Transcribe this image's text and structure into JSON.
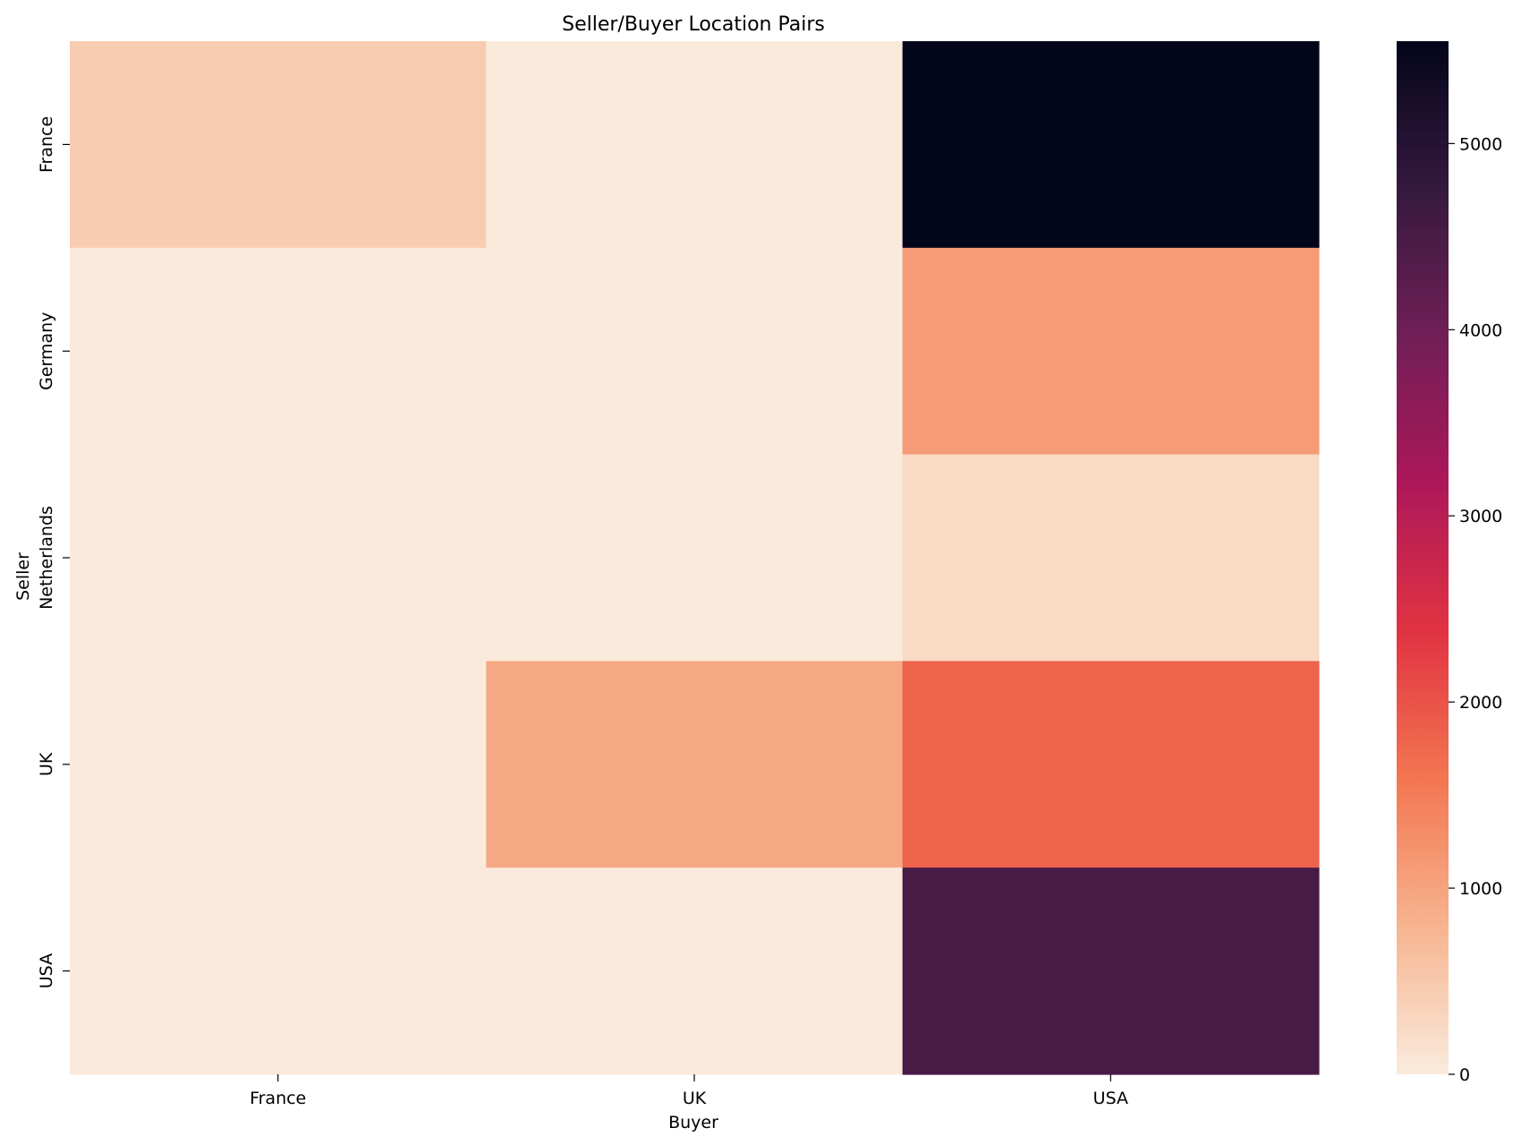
{
  "chart_data": {
    "type": "heatmap",
    "title": "Seller/Buyer Location Pairs",
    "xlabel": "Buyer",
    "ylabel": "Seller",
    "x_categories": [
      "France",
      "UK",
      "USA"
    ],
    "y_categories": [
      "France",
      "Germany",
      "Netherlands",
      "UK",
      "USA"
    ],
    "values": [
      [
        450,
        20,
        5600
      ],
      [
        20,
        20,
        1100
      ],
      [
        20,
        20,
        250
      ],
      [
        20,
        950,
        1800
      ],
      [
        20,
        20,
        4500
      ]
    ],
    "colorbar": {
      "range": [
        0,
        5550
      ],
      "ticks": [
        0,
        1000,
        2000,
        3000,
        4000,
        5000
      ],
      "tick_labels": [
        "0",
        "1000",
        "2000",
        "3000",
        "4000",
        "5000"
      ],
      "colormap": "rocket_r",
      "stops": [
        "#faebdd",
        "#f6b48f",
        "#f37651",
        "#e13342",
        "#ad1759",
        "#701f57",
        "#35193e",
        "#03051a"
      ]
    },
    "grid": false,
    "legend": "colorbar-right"
  }
}
